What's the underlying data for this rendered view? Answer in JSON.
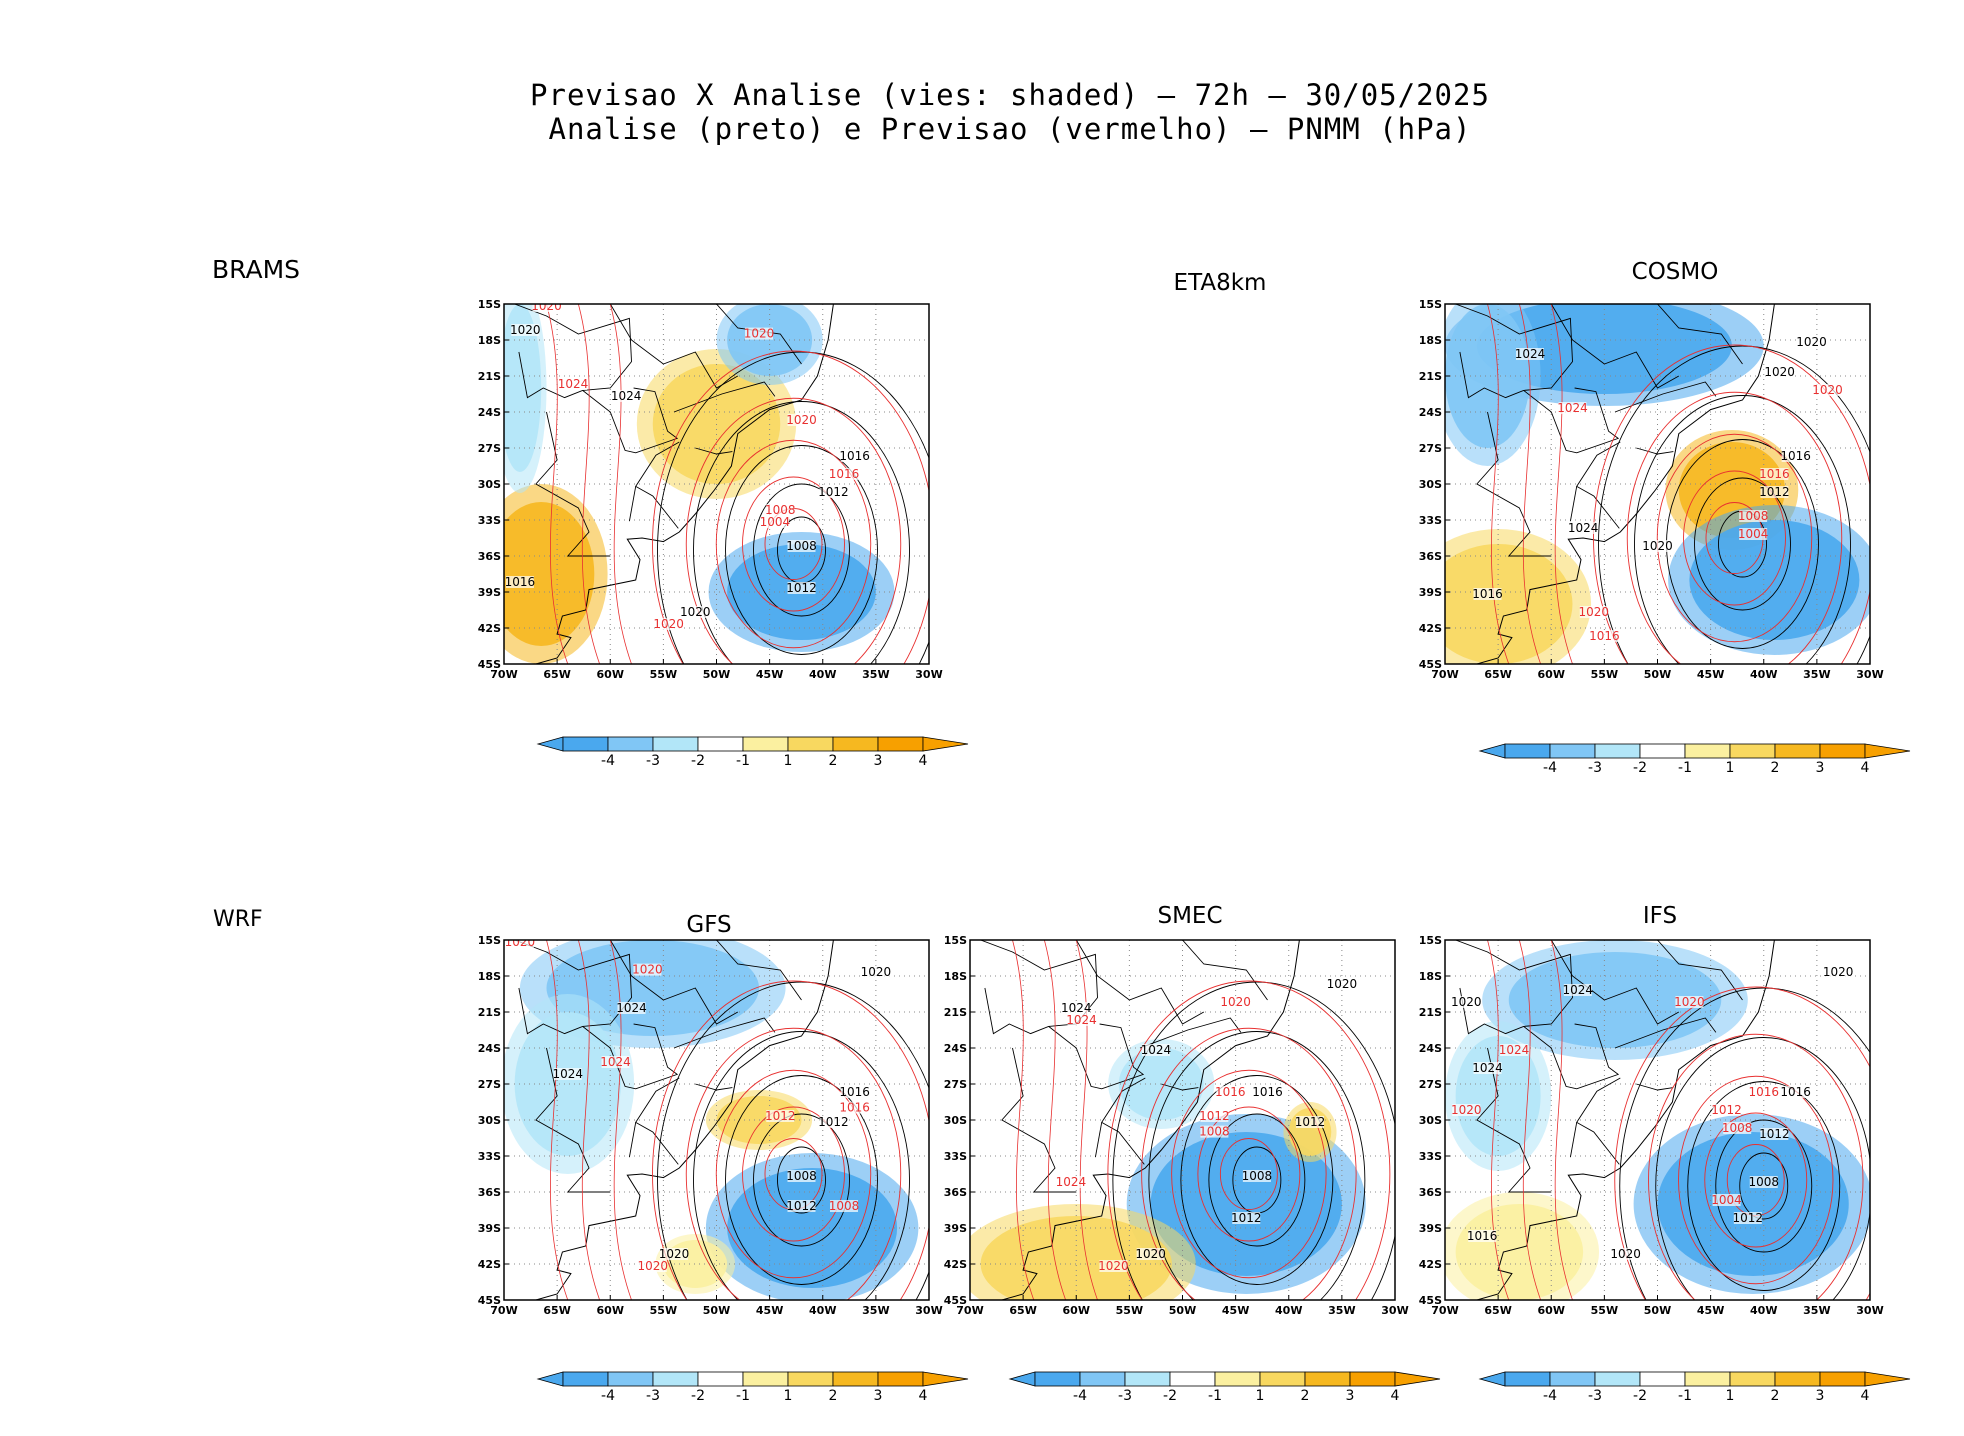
{
  "figure": {
    "title_line1": "Previsao X Analise (vies: shaded) — 72h — 30/05/2025",
    "title_line2": "Analise (preto) e Previsao (vermelho) — PNMM (hPa)"
  },
  "row_labels": {
    "top": "BRAMS",
    "bottom": "WRF"
  },
  "colors": {
    "bias": [
      "#4aa8ee",
      "#80c6f5",
      "#b2e6f8",
      "#ffffff",
      "#fbf0a0",
      "#f8d860",
      "#f6b820",
      "#f7a000"
    ],
    "analysis_contour": "#000000",
    "forecast_contour": "#e83030"
  },
  "map_axes": {
    "lat_ticks": [
      "15S",
      "18S",
      "21S",
      "24S",
      "27S",
      "30S",
      "33S",
      "36S",
      "39S",
      "42S",
      "45S"
    ],
    "lon_ticks": [
      "70W",
      "65W",
      "60W",
      "55W",
      "50W",
      "45W",
      "40W",
      "35W",
      "30W"
    ]
  },
  "colorbar": {
    "labels": [
      "-4",
      "-3",
      "-2",
      "-1",
      "1",
      "2",
      "3",
      "4"
    ]
  },
  "panels": [
    {
      "id": "brams",
      "title": "",
      "has_map": true,
      "bias_patches": [
        {
          "lon": -66.5,
          "lat": -37.5,
          "rlon": 5,
          "rlat": 6,
          "bin": 6
        },
        {
          "lon": -68.5,
          "lat": -22,
          "rlon": 2,
          "rlat": 7,
          "bin": 2
        },
        {
          "lon": -50,
          "lat": -25,
          "rlon": 6,
          "rlat": 5,
          "bin": 5
        },
        {
          "lon": -42,
          "lat": -39,
          "rlon": 7,
          "rlat": 4,
          "bin": 0
        },
        {
          "lon": -45,
          "lat": -18,
          "rlon": 4,
          "rlat": 3,
          "bin": 1
        }
      ],
      "analysis_labels": [
        {
          "text": "1020",
          "lon": -68,
          "lat": -17.5
        },
        {
          "text": "1024",
          "lon": -58.5,
          "lat": -23
        },
        {
          "text": "1016",
          "lon": -37,
          "lat": -28
        },
        {
          "text": "1012",
          "lon": -39,
          "lat": -31
        },
        {
          "text": "1008",
          "lon": -42,
          "lat": -35.5
        },
        {
          "text": "1012",
          "lon": -42,
          "lat": -39
        },
        {
          "text": "1020",
          "lon": -52,
          "lat": -41
        },
        {
          "text": "1016",
          "lon": -68.5,
          "lat": -38.5
        }
      ],
      "forecast_labels": [
        {
          "text": "1020",
          "lon": -66,
          "lat": -15.5
        },
        {
          "text": "1020",
          "lon": -46,
          "lat": -17.8
        },
        {
          "text": "1024",
          "lon": -63.5,
          "lat": -22
        },
        {
          "text": "1020",
          "lon": -42,
          "lat": -25
        },
        {
          "text": "1016",
          "lon": -38,
          "lat": -29.5
        },
        {
          "text": "1008",
          "lon": -44,
          "lat": -32.5
        },
        {
          "text": "1004",
          "lon": -44.5,
          "lat": -33.5
        },
        {
          "text": "1020",
          "lon": -54.5,
          "lat": -42
        }
      ]
    },
    {
      "id": "eta8km",
      "title": "ETA8km",
      "has_map": false
    },
    {
      "id": "cosmo",
      "title": "COSMO",
      "has_map": true,
      "bias_patches": [
        {
          "lon": -55,
          "lat": -18.5,
          "rlon": 12,
          "rlat": 4,
          "bin": 0
        },
        {
          "lon": -66,
          "lat": -21,
          "rlon": 4,
          "rlat": 6,
          "bin": 1
        },
        {
          "lon": -43,
          "lat": -30.5,
          "rlon": 5,
          "rlat": 4,
          "bin": 6
        },
        {
          "lon": -39,
          "lat": -38,
          "rlon": 8,
          "rlat": 5,
          "bin": 0
        },
        {
          "lon": -65,
          "lat": -40,
          "rlon": 7,
          "rlat": 5,
          "bin": 5
        }
      ],
      "analysis_labels": [
        {
          "text": "1020",
          "lon": -35.5,
          "lat": -18.5
        },
        {
          "text": "1024",
          "lon": -62,
          "lat": -19.5
        },
        {
          "text": "1020",
          "lon": -38.5,
          "lat": -21
        },
        {
          "text": "1016",
          "lon": -37,
          "lat": -28
        },
        {
          "text": "1012",
          "lon": -39,
          "lat": -31
        },
        {
          "text": "1020",
          "lon": -50,
          "lat": -35.5
        },
        {
          "text": "1024",
          "lon": -57,
          "lat": -34
        },
        {
          "text": "1016",
          "lon": -66,
          "lat": -39.5
        }
      ],
      "forecast_labels": [
        {
          "text": "1020",
          "lon": -34,
          "lat": -22.5
        },
        {
          "text": "1024",
          "lon": -58,
          "lat": -24
        },
        {
          "text": "1016",
          "lon": -39,
          "lat": -29.5
        },
        {
          "text": "1008",
          "lon": -41,
          "lat": -33
        },
        {
          "text": "1004",
          "lon": -41,
          "lat": -34.5
        },
        {
          "text": "1020",
          "lon": -56,
          "lat": -41
        },
        {
          "text": "1016",
          "lon": -55,
          "lat": -43
        }
      ]
    },
    {
      "id": "gfs",
      "title": "GFS",
      "has_map": true,
      "bias_patches": [
        {
          "lon": -56,
          "lat": -19,
          "rlon": 10,
          "rlat": 4,
          "bin": 1
        },
        {
          "lon": -64,
          "lat": -27,
          "rlon": 5,
          "rlat": 6,
          "bin": 2
        },
        {
          "lon": -46,
          "lat": -30,
          "rlon": 4,
          "rlat": 2,
          "bin": 5
        },
        {
          "lon": -41,
          "lat": -39,
          "rlon": 8,
          "rlat": 5,
          "bin": 0
        },
        {
          "lon": -52,
          "lat": -42,
          "rlon": 3,
          "rlat": 2,
          "bin": 4
        }
      ],
      "analysis_labels": [
        {
          "text": "1020",
          "lon": -35,
          "lat": -18
        },
        {
          "text": "1024",
          "lon": -58,
          "lat": -21
        },
        {
          "text": "1024",
          "lon": -64,
          "lat": -26.5
        },
        {
          "text": "1016",
          "lon": -37,
          "lat": -28
        },
        {
          "text": "1012",
          "lon": -39,
          "lat": -30.5
        },
        {
          "text": "1008",
          "lon": -42,
          "lat": -35
        },
        {
          "text": "1012",
          "lon": -42,
          "lat": -37.5
        },
        {
          "text": "1020",
          "lon": -54,
          "lat": -41.5
        }
      ],
      "forecast_labels": [
        {
          "text": "1020",
          "lon": -68.5,
          "lat": -15.5
        },
        {
          "text": "1020",
          "lon": -56.5,
          "lat": -17.8
        },
        {
          "text": "1024",
          "lon": -59.5,
          "lat": -25.5
        },
        {
          "text": "1016",
          "lon": -37,
          "lat": -29.3
        },
        {
          "text": "1012",
          "lon": -44,
          "lat": -30
        },
        {
          "text": "1008",
          "lon": -38,
          "lat": -37.5
        },
        {
          "text": "1020",
          "lon": -56,
          "lat": -42.5
        }
      ]
    },
    {
      "id": "smec",
      "title": "SMEC",
      "has_map": true,
      "bias_patches": [
        {
          "lon": -44,
          "lat": -37,
          "rlon": 9,
          "rlat": 6,
          "bin": 0
        },
        {
          "lon": -60,
          "lat": -42,
          "rlon": 9,
          "rlat": 4,
          "bin": 5
        },
        {
          "lon": -52,
          "lat": -27,
          "rlon": 4,
          "rlat": 3,
          "bin": 2
        },
        {
          "lon": -38,
          "lat": -31,
          "rlon": 2,
          "rlat": 2,
          "bin": 5
        }
      ],
      "analysis_labels": [
        {
          "text": "1020",
          "lon": -35,
          "lat": -19
        },
        {
          "text": "1024",
          "lon": -60,
          "lat": -21
        },
        {
          "text": "1024",
          "lon": -52.5,
          "lat": -24.5
        },
        {
          "text": "1016",
          "lon": -42,
          "lat": -28
        },
        {
          "text": "1012",
          "lon": -38,
          "lat": -30.5
        },
        {
          "text": "1008",
          "lon": -43,
          "lat": -35
        },
        {
          "text": "1012",
          "lon": -44,
          "lat": -38.5
        },
        {
          "text": "1020",
          "lon": -53,
          "lat": -41.5
        }
      ],
      "forecast_labels": [
        {
          "text": "1020",
          "lon": -45,
          "lat": -20.5
        },
        {
          "text": "1024",
          "lon": -59.5,
          "lat": -22
        },
        {
          "text": "1016",
          "lon": -45.5,
          "lat": -28
        },
        {
          "text": "1012",
          "lon": -47,
          "lat": -30
        },
        {
          "text": "1008",
          "lon": -47,
          "lat": -31.3
        },
        {
          "text": "1024",
          "lon": -60.5,
          "lat": -35.5
        },
        {
          "text": "1020",
          "lon": -56.5,
          "lat": -42.5
        }
      ]
    },
    {
      "id": "ifs",
      "title": "IFS",
      "has_map": true,
      "bias_patches": [
        {
          "lon": -54,
          "lat": -20,
          "rlon": 10,
          "rlat": 4,
          "bin": 1
        },
        {
          "lon": -41,
          "lat": -37,
          "rlon": 9,
          "rlat": 6,
          "bin": 0
        },
        {
          "lon": -63,
          "lat": -41,
          "rlon": 6,
          "rlat": 4,
          "bin": 4
        },
        {
          "lon": -65,
          "lat": -28,
          "rlon": 4,
          "rlat": 5,
          "bin": 2
        }
      ],
      "analysis_labels": [
        {
          "text": "1020",
          "lon": -68,
          "lat": -20.5
        },
        {
          "text": "1024",
          "lon": -57.5,
          "lat": -19.5
        },
        {
          "text": "1024",
          "lon": -66,
          "lat": -26
        },
        {
          "text": "1016",
          "lon": -37,
          "lat": -28
        },
        {
          "text": "1012",
          "lon": -39,
          "lat": -31.5
        },
        {
          "text": "1008",
          "lon": -40,
          "lat": -35.5
        },
        {
          "text": "1012",
          "lon": -41.5,
          "lat": -38.5
        },
        {
          "text": "1020",
          "lon": -53,
          "lat": -41.5
        },
        {
          "text": "1016",
          "lon": -66.5,
          "lat": -40
        },
        {
          "text": "1020",
          "lon": -33,
          "lat": -18
        }
      ],
      "forecast_labels": [
        {
          "text": "1020",
          "lon": -47,
          "lat": -20.5
        },
        {
          "text": "1024",
          "lon": -63.5,
          "lat": -24.5
        },
        {
          "text": "1016",
          "lon": -40,
          "lat": -28
        },
        {
          "text": "1012",
          "lon": -43.5,
          "lat": -29.5
        },
        {
          "text": "1008",
          "lon": -42.5,
          "lat": -31
        },
        {
          "text": "1004",
          "lon": -43.5,
          "lat": -37
        },
        {
          "text": "1020",
          "lon": -68,
          "lat": -29.5
        }
      ]
    }
  ]
}
